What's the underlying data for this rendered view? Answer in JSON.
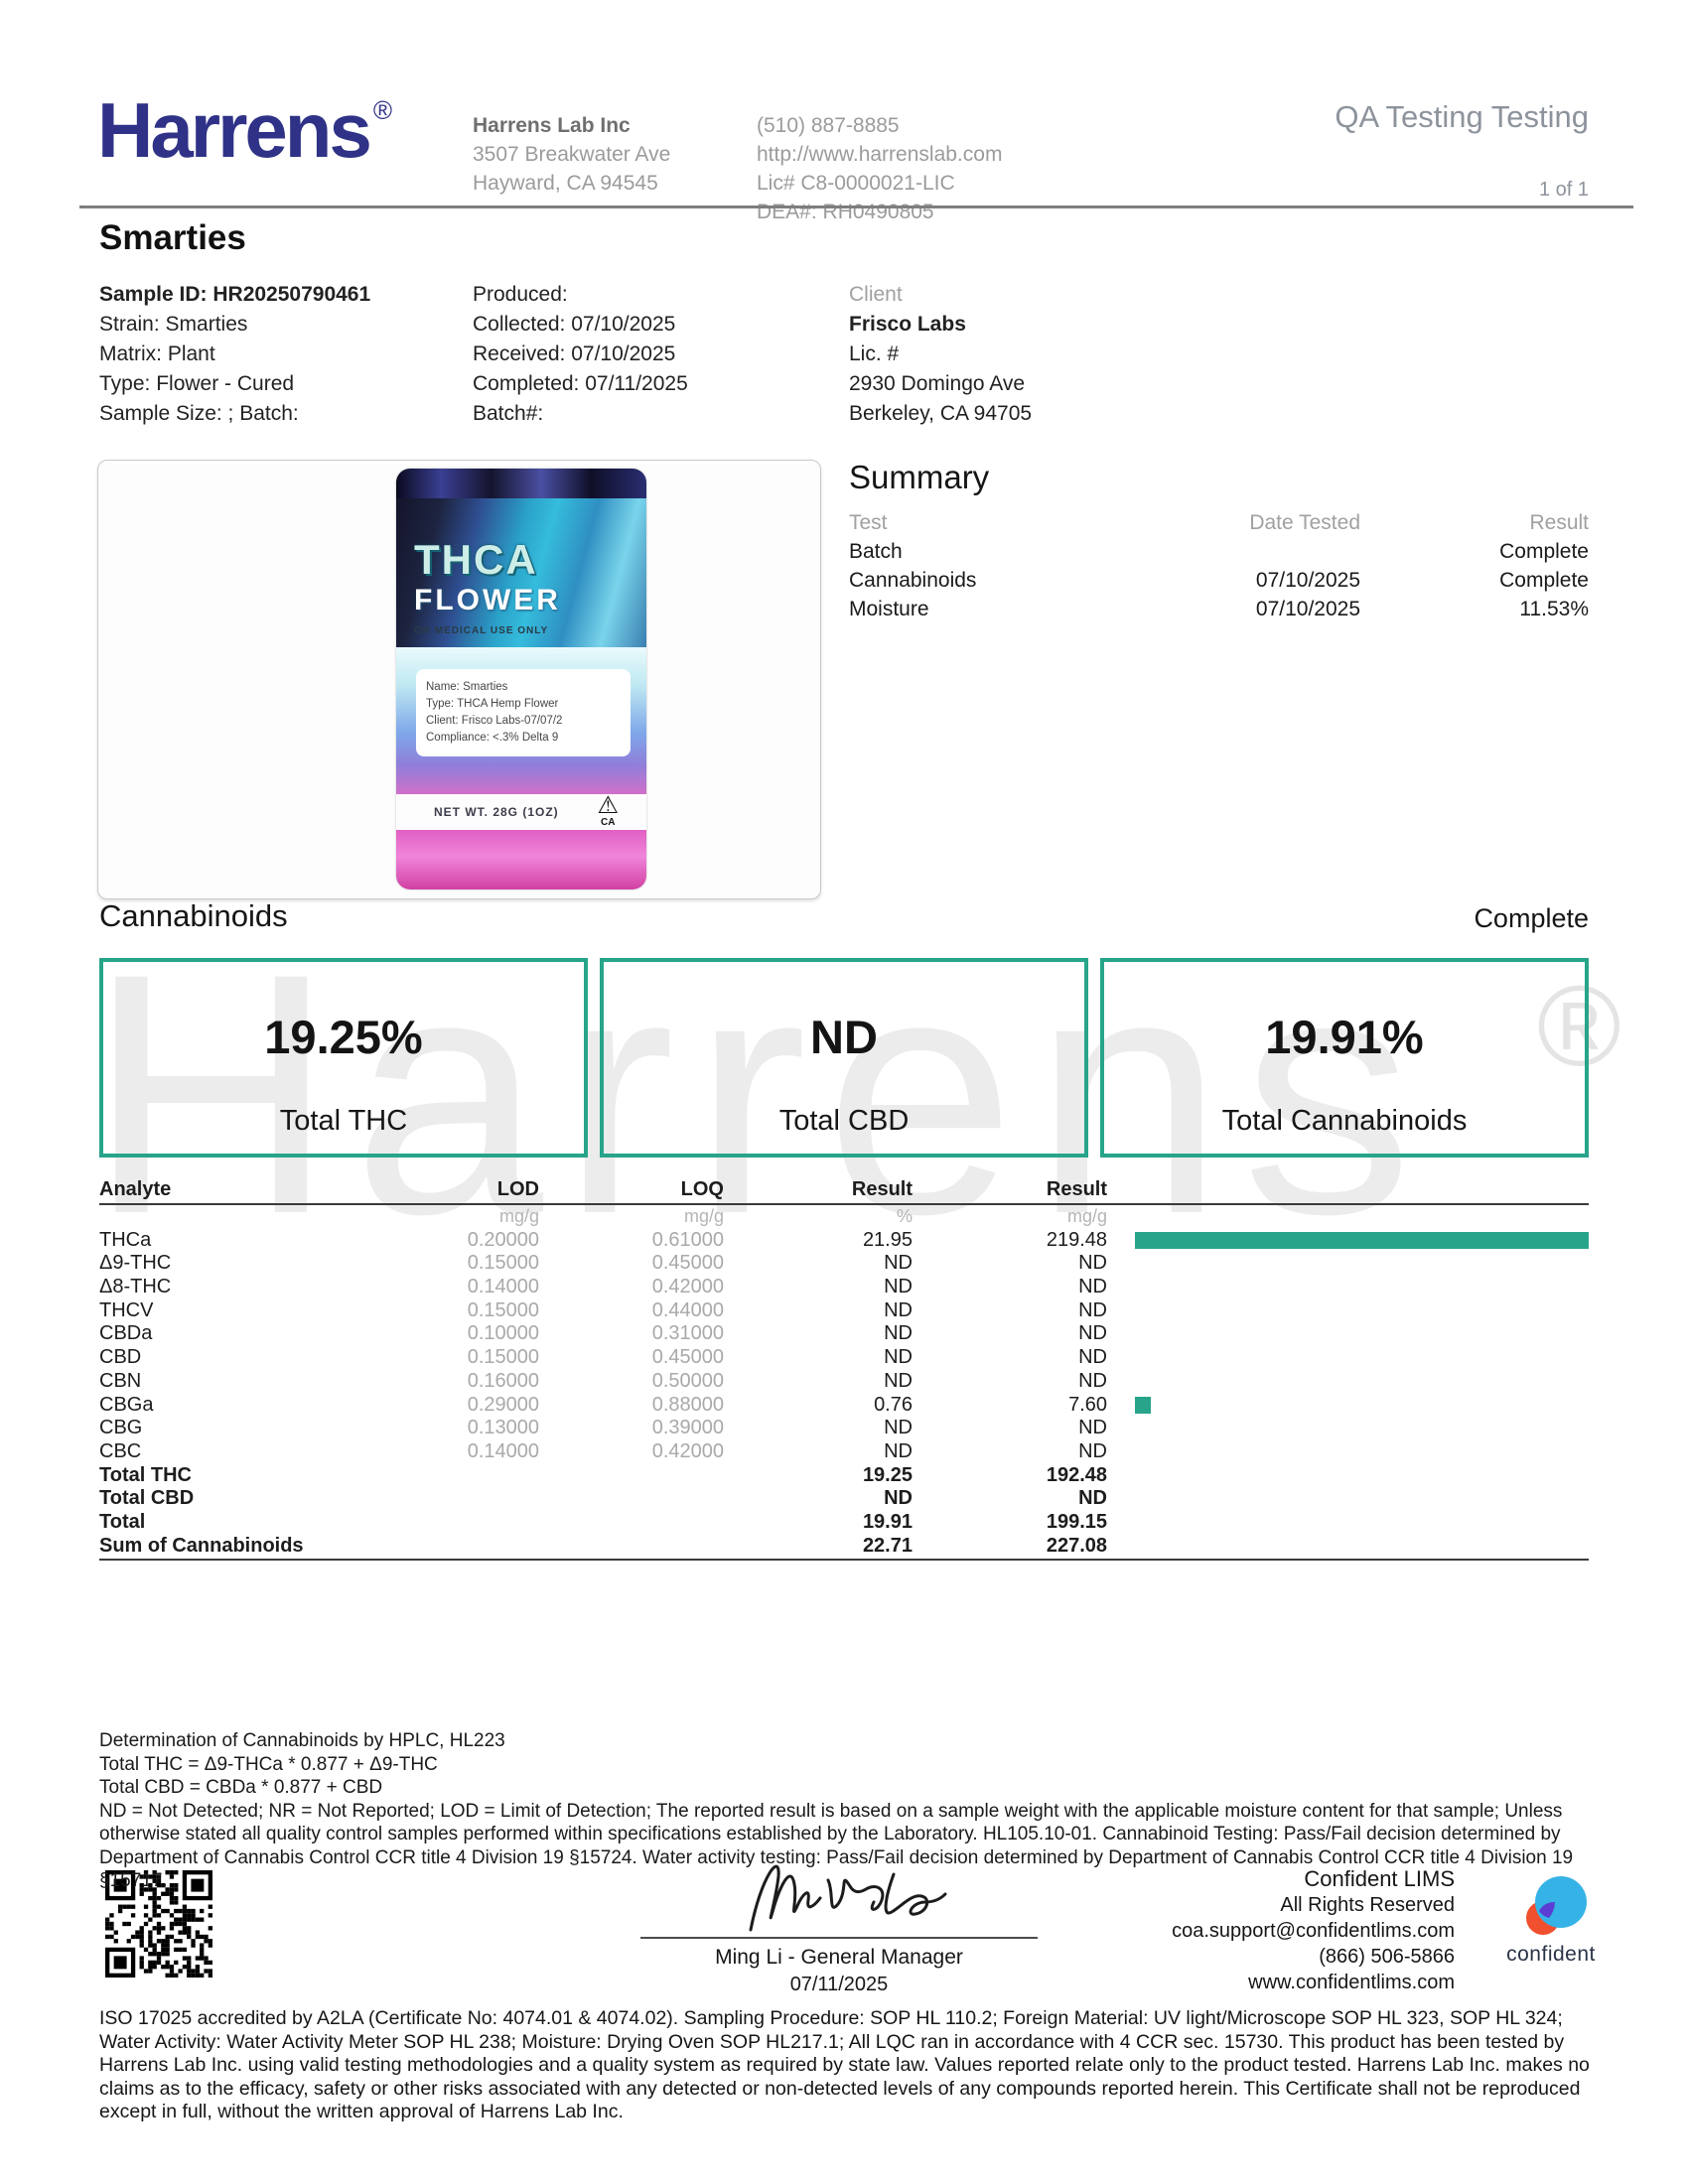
{
  "header": {
    "logo_text": "Harrens",
    "registered": "®",
    "lab_name": "Harrens Lab Inc",
    "address_line1": "3507 Breakwater Ave",
    "address_line2": "Hayward, CA 94545",
    "phone": "(510) 887-8885",
    "website": "http://www.harrenslab.com",
    "license": "Lic# C8-0000021-LIC",
    "dea": "DEA#: RH0490805",
    "report_type": "QA Testing Testing",
    "page_number": "1 of 1"
  },
  "sample": {
    "title": "Smarties",
    "fields_left": [
      "Sample ID: HR20250790461",
      "Strain: Smarties",
      "Matrix: Plant",
      "Type: Flower - Cured",
      "Sample Size: ; Batch:"
    ],
    "fields_mid": [
      "Produced:",
      "Collected: 07/10/2025",
      "Received: 07/10/2025",
      "Completed: 07/11/2025",
      "Batch#:"
    ],
    "client": {
      "label": "Client",
      "name": "Frisco Labs",
      "lic": "Lic. #",
      "address1": "2930 Domingo Ave",
      "address2": "Berkeley, CA 94705"
    }
  },
  "product_image": {
    "brand_line1": "THCA",
    "brand_line2": "FLOWER",
    "medical": "OR MEDICAL USE ONLY",
    "label_lines": [
      "Name: Smarties",
      "Type: THCA Hemp Flower",
      "Client: Frisco Labs-07/07/2",
      "Compliance: <.3% Delta 9"
    ],
    "net_wt": "NET WT. 28G (1OZ)",
    "ca": "CA"
  },
  "summary": {
    "title": "Summary",
    "headers": [
      "Test",
      "Date Tested",
      "Result"
    ],
    "rows": [
      {
        "test": "Batch",
        "date": "",
        "result": "Complete"
      },
      {
        "test": "Cannabinoids",
        "date": "07/10/2025",
        "result": "Complete"
      },
      {
        "test": "Moisture",
        "date": "07/10/2025",
        "result": "11.53%"
      }
    ]
  },
  "watermark": {
    "text": "Harrens",
    "mark": "®"
  },
  "cannabinoids": {
    "title": "Cannabinoids",
    "status": "Complete",
    "accent_color": "#27a48a",
    "totals": [
      {
        "value": "19.25%",
        "label": "Total THC"
      },
      {
        "value": "ND",
        "label": "Total CBD"
      },
      {
        "value": "19.91%",
        "label": "Total Cannabinoids"
      }
    ]
  },
  "analytes": {
    "headers": [
      "Analyte",
      "LOD",
      "LOQ",
      "Result",
      "Result"
    ],
    "units": [
      "",
      "mg/g",
      "mg/g",
      "%",
      "mg/g"
    ],
    "rows": [
      {
        "name": "THCa",
        "lod": "0.20000",
        "loq": "0.61000",
        "pct": "21.95",
        "mgg": "219.48",
        "bar": 1
      },
      {
        "name": "Δ9-THC",
        "lod": "0.15000",
        "loq": "0.45000",
        "pct": "ND",
        "mgg": "ND",
        "bar": 0
      },
      {
        "name": "Δ8-THC",
        "lod": "0.14000",
        "loq": "0.42000",
        "pct": "ND",
        "mgg": "ND",
        "bar": 0
      },
      {
        "name": "THCV",
        "lod": "0.15000",
        "loq": "0.44000",
        "pct": "ND",
        "mgg": "ND",
        "bar": 0
      },
      {
        "name": "CBDa",
        "lod": "0.10000",
        "loq": "0.31000",
        "pct": "ND",
        "mgg": "ND",
        "bar": 0
      },
      {
        "name": "CBD",
        "lod": "0.15000",
        "loq": "0.45000",
        "pct": "ND",
        "mgg": "ND",
        "bar": 0
      },
      {
        "name": "CBN",
        "lod": "0.16000",
        "loq": "0.50000",
        "pct": "ND",
        "mgg": "ND",
        "bar": 0
      },
      {
        "name": "CBGa",
        "lod": "0.29000",
        "loq": "0.88000",
        "pct": "0.76",
        "mgg": "7.60",
        "bar": 0.035
      },
      {
        "name": "CBG",
        "lod": "0.13000",
        "loq": "0.39000",
        "pct": "ND",
        "mgg": "ND",
        "bar": 0
      },
      {
        "name": "CBC",
        "lod": "0.14000",
        "loq": "0.42000",
        "pct": "ND",
        "mgg": "ND",
        "bar": 0
      }
    ],
    "totals": [
      {
        "name": "Total THC",
        "pct": "19.25",
        "mgg": "192.48"
      },
      {
        "name": "Total CBD",
        "pct": "ND",
        "mgg": "ND"
      },
      {
        "name": "Total",
        "pct": "19.91",
        "mgg": "199.15"
      },
      {
        "name": "Sum of Cannabinoids",
        "pct": "22.71",
        "mgg": "227.08"
      }
    ]
  },
  "notes": [
    "Determination of Cannabinoids by HPLC, HL223",
    "Total THC = Δ9-THCa * 0.877 + Δ9-THC",
    "Total CBD = CBDa * 0.877 + CBD",
    "ND = Not Detected; NR = Not Reported; LOD = Limit of Detection; The reported result is based on a sample weight with the applicable moisture content for that sample; Unless otherwise stated all quality control samples performed within specifications established by the Laboratory. HL105.10-01. Cannabinoid Testing: Pass/Fail decision determined by Department of Cannabis Control CCR title 4 Division 19 §15724. Water activity testing: Pass/Fail decision determined by Department of Cannabis Control CCR title 4 Division 19 §15717."
  ],
  "signature": {
    "name_title": "Ming Li - General Manager",
    "date": "07/11/2025"
  },
  "lims": {
    "name": "Confident LIMS",
    "rights": "All Rights Reserved",
    "email": "coa.support@confidentlims.com",
    "phone": "(866) 506-5866",
    "web": "www.confidentlims.com",
    "brand": "confident"
  },
  "footer": "ISO 17025 accredited by A2LA (Certificate No: 4074.01 & 4074.02). Sampling Procedure: SOP HL 110.2; Foreign Material: UV light/Microscope SOP HL 323, SOP HL 324; Water Activity: Water Activity Meter SOP HL 238; Moisture: Drying Oven SOP HL217.1; All LQC ran in accordance with 4 CCR sec. 15730. This product has been tested by Harrens Lab Inc. using valid testing methodologies and a quality system as required by state law. Values reported relate only to the product tested. Harrens Lab Inc. makes no claims as to the efficacy, safety or other risks associated with any detected or non-detected levels of any compounds reported herein. This Certificate shall not be reproduced except in full, without the written approval of Harrens Lab Inc."
}
